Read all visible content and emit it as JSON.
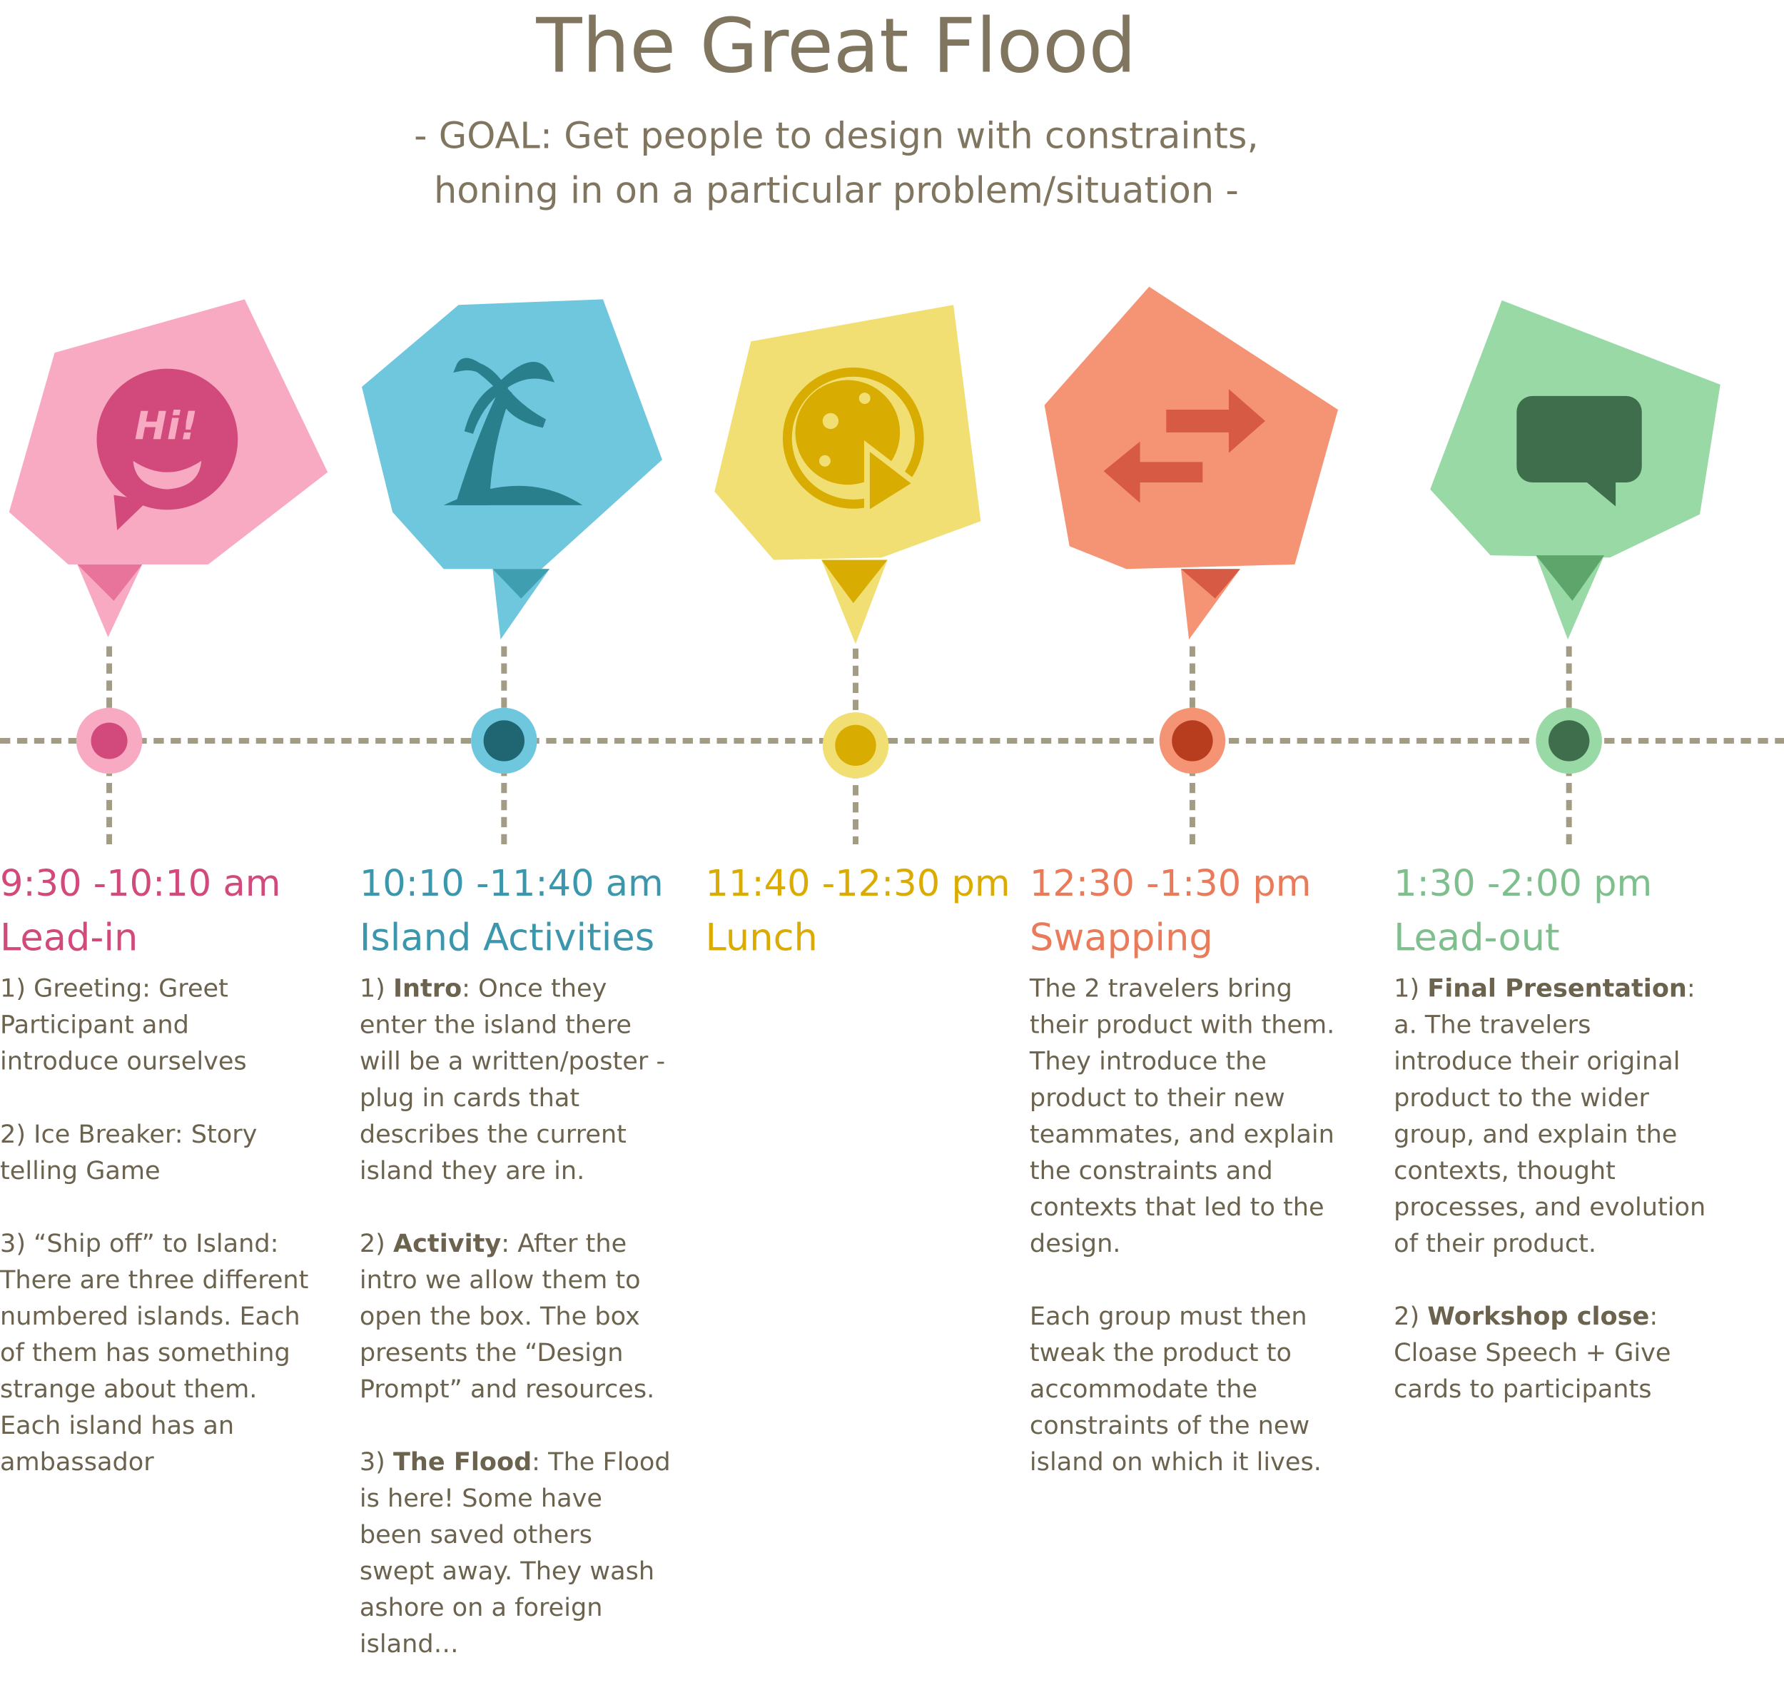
{
  "header": {
    "title": "The Great Flood",
    "goal": [
      "- GOAL: Get people to design with constraints,",
      "honing in on a particular problem/situation -"
    ]
  },
  "stages": [
    {
      "time": "9:30 -10:10 am",
      "name": "Lead-in",
      "icon_text": "Hi!",
      "items": [
        {
          "text": "1) Greeting: Greet Participant and introduce ourselves"
        },
        {
          "text": "2) Ice Breaker: Story telling Game"
        },
        {
          "text": "3) “Ship off” to Island: There are three different numbered islands. Each of them has something strange about them. Each island has an ambassador"
        }
      ]
    },
    {
      "time": "10:10 -11:40 am",
      "name": "Island Activities",
      "items": [
        {
          "prefix": "1) ",
          "label": "Intro",
          "text": ": Once they enter the island there will be a written/poster - plug in cards  that describes the current island they are in."
        },
        {
          "prefix": "2) ",
          "label": "Activity",
          "text": ": After the intro we allow them to open the box. The box presents the “Design Prompt” and resources."
        },
        {
          "prefix": "3) ",
          "label": "The Flood",
          "text": ": The Flood is here! Some have been saved others swept away. They wash ashore on a foreign island…"
        }
      ]
    },
    {
      "time": "11:40 -12:30 pm",
      "name": "Lunch"
    },
    {
      "time": "12:30 -1:30 pm",
      "name": "Swapping",
      "items": [
        {
          "text": "The 2 travelers bring their product with them. They introduce the product to their new teammates, and explain the constraints and contexts that led to the design."
        },
        {
          "text": "Each group must then tweak the product to accommodate the constraints of the new island on which it lives."
        }
      ]
    },
    {
      "time": "1:30 -2:00 pm",
      "name": "Lead-out",
      "items": [
        {
          "prefix": "1) ",
          "label": "Final Presentation",
          "text": ": a. The travelers introduce their original product to the wider group, and explain the contexts, thought processes, and evolution of their product."
        },
        {
          "prefix": "2) ",
          "label": "Workshop close",
          "text": ": Cloase Speech + Give cards to participants"
        }
      ]
    }
  ]
}
